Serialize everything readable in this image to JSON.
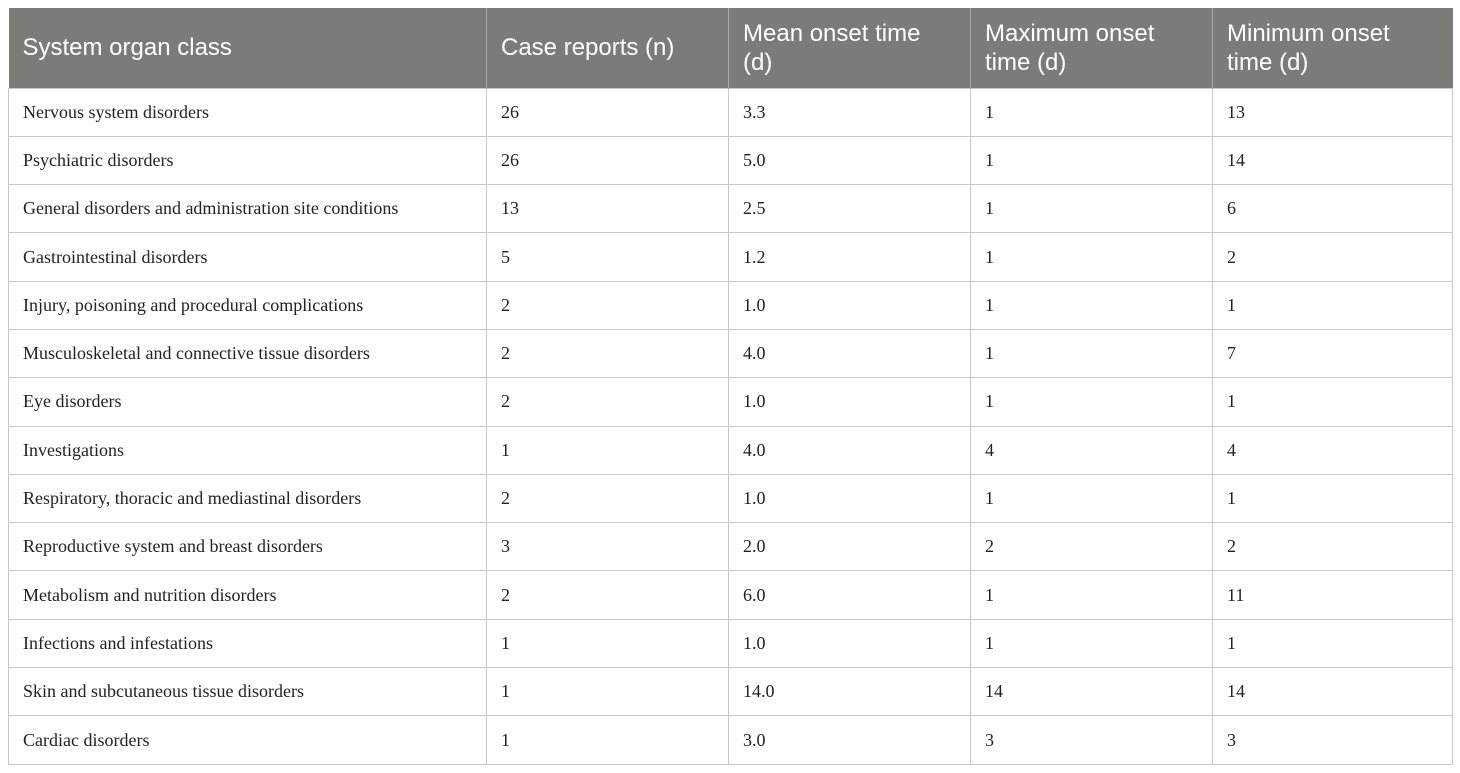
{
  "table": {
    "headers": [
      "System organ class",
      "Case reports (n)",
      "Mean onset time (d)",
      "Maximum onset time (d)",
      "Minimum onset time (d)"
    ],
    "rows": [
      [
        "Nervous system disorders",
        "26",
        "3.3",
        "1",
        "13"
      ],
      [
        "Psychiatric disorders",
        "26",
        "5.0",
        "1",
        "14"
      ],
      [
        "General disorders and administration site conditions",
        "13",
        "2.5",
        "1",
        "6"
      ],
      [
        "Gastrointestinal disorders",
        "5",
        "1.2",
        "1",
        "2"
      ],
      [
        "Injury, poisoning and procedural complications",
        "2",
        "1.0",
        "1",
        "1"
      ],
      [
        "Musculoskeletal and connective tissue disorders",
        "2",
        "4.0",
        "1",
        "7"
      ],
      [
        "Eye disorders",
        "2",
        "1.0",
        "1",
        "1"
      ],
      [
        "Investigations",
        "1",
        "4.0",
        "4",
        "4"
      ],
      [
        "Respiratory, thoracic and mediastinal disorders",
        "2",
        "1.0",
        "1",
        "1"
      ],
      [
        "Reproductive system and breast disorders",
        "3",
        "2.0",
        "2",
        "2"
      ],
      [
        "Metabolism and nutrition disorders",
        "2",
        "6.0",
        "1",
        "11"
      ],
      [
        "Infections and infestations",
        "1",
        "1.0",
        "1",
        "1"
      ],
      [
        "Skin and subcutaneous tissue disorders",
        "1",
        "14.0",
        "14",
        "14"
      ],
      [
        "Cardiac disorders",
        "1",
        "3.0",
        "3",
        "3"
      ]
    ]
  },
  "colors": {
    "header_bg": "#7b7c7a",
    "header_text": "#ffffff",
    "grid": "#c9c9c9"
  }
}
